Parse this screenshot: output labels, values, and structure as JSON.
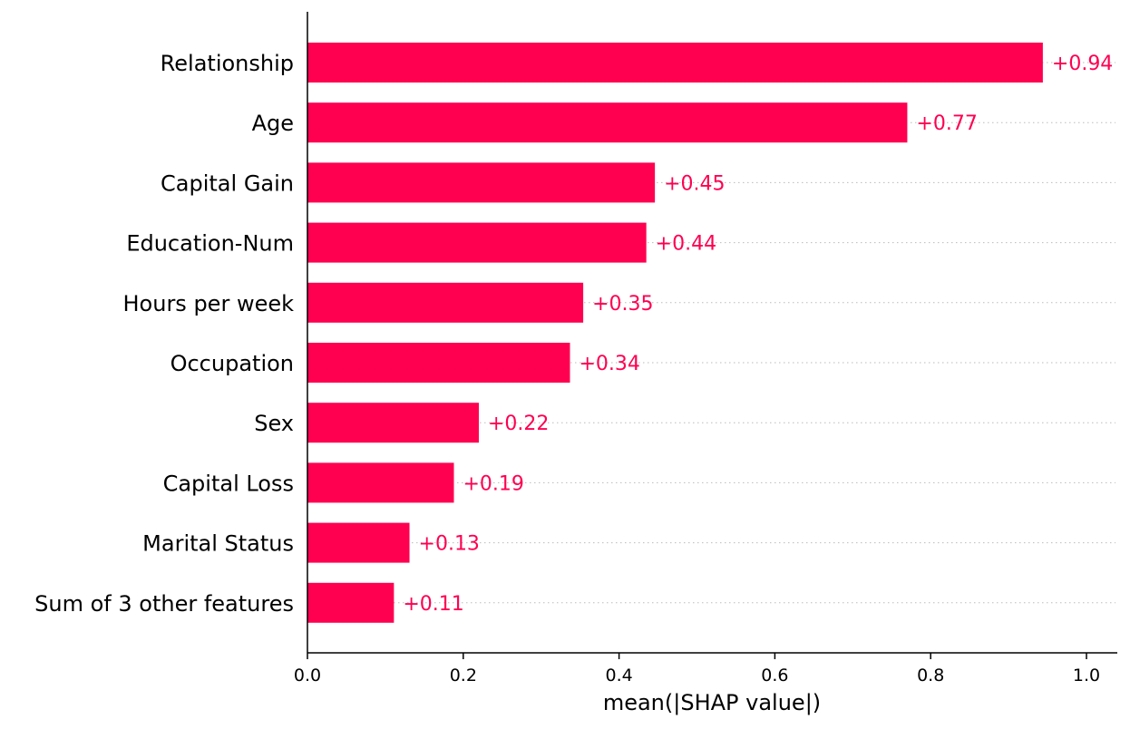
{
  "chart_data": {
    "type": "bar",
    "orientation": "horizontal",
    "categories": [
      "Relationship",
      "Age",
      "Capital Gain",
      "Education-Num",
      "Hours per week",
      "Occupation",
      "Sex",
      "Capital Loss",
      "Marital Status",
      "Sum of 3 other features"
    ],
    "values": [
      0.944,
      0.77,
      0.446,
      0.435,
      0.354,
      0.337,
      0.22,
      0.188,
      0.131,
      0.111
    ],
    "value_labels": [
      "+0.94",
      "+0.77",
      "+0.45",
      "+0.44",
      "+0.35",
      "+0.34",
      "+0.22",
      "+0.19",
      "+0.13",
      "+0.11"
    ],
    "xlabel": "mean(|SHAP value|)",
    "xlim": [
      0,
      1.04
    ],
    "xticks": [
      0.0,
      0.2,
      0.4,
      0.6,
      0.8,
      1.0
    ],
    "xtick_labels": [
      "0.0",
      "0.2",
      "0.4",
      "0.6",
      "0.8",
      "1.0"
    ],
    "bar_color": "#ff0051",
    "grid": "dotted horizontal lines per category"
  }
}
